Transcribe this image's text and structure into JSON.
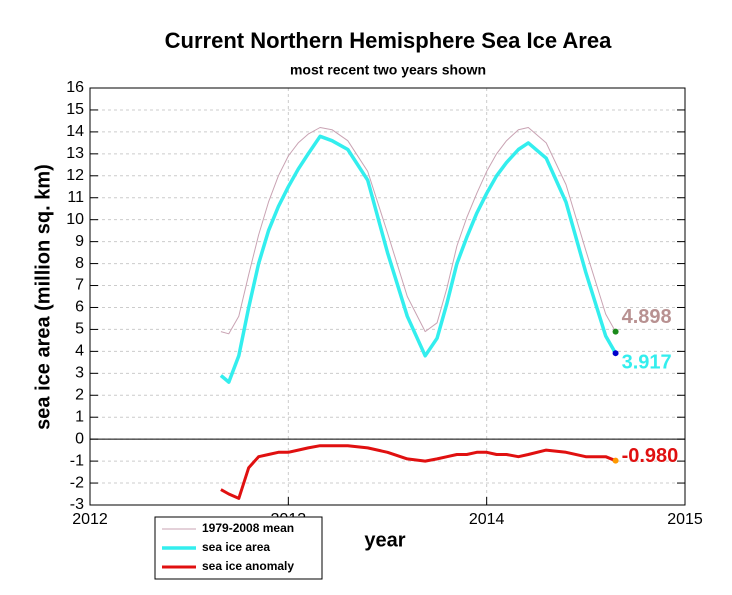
{
  "chart_data": {
    "type": "line",
    "title": "Current Northern Hemisphere Sea Ice Area",
    "subtitle": "most recent two years shown",
    "x_label": "year",
    "y_label": "sea ice area (million sq. km)",
    "x": [
      2012.66,
      2012.7,
      2012.75,
      2012.8,
      2012.85,
      2012.9,
      2012.95,
      2013.0,
      2013.05,
      2013.1,
      2013.16,
      2013.22,
      2013.3,
      2013.4,
      2013.5,
      2013.6,
      2013.69,
      2013.75,
      2013.8,
      2013.85,
      2013.9,
      2013.95,
      2014.0,
      2014.05,
      2014.1,
      2014.16,
      2014.21,
      2014.3,
      2014.4,
      2014.5,
      2014.6,
      2014.65
    ],
    "series": [
      {
        "name": "1979-2008 mean",
        "color": "#c9a3b3",
        "marker_color": "#1a8a1a",
        "label_color": "#b89191",
        "values": [
          4.9,
          4.8,
          5.6,
          7.5,
          9.3,
          10.8,
          12.0,
          12.9,
          13.5,
          13.9,
          14.2,
          14.1,
          13.6,
          12.2,
          9.4,
          6.5,
          4.9,
          5.3,
          6.9,
          8.8,
          10.1,
          11.2,
          12.2,
          13.0,
          13.6,
          14.1,
          14.2,
          13.5,
          11.6,
          8.6,
          5.7,
          4.898
        ],
        "value_labels": [
          null,
          null,
          null,
          null,
          null,
          null,
          null,
          null,
          null,
          null,
          null,
          null,
          null,
          null,
          null,
          null,
          null,
          null,
          null,
          null,
          null,
          null,
          null,
          null,
          null,
          null,
          null,
          null,
          null,
          null,
          null,
          "4.898"
        ]
      },
      {
        "name": "sea ice area",
        "color": "#33eeee",
        "marker_color": "#0000cc",
        "label_color": "#33eeee",
        "values": [
          2.9,
          2.6,
          3.8,
          6.0,
          8.0,
          9.5,
          10.6,
          11.5,
          12.3,
          13.0,
          13.8,
          13.6,
          13.2,
          11.8,
          8.5,
          5.6,
          3.8,
          4.6,
          6.2,
          8.0,
          9.2,
          10.3,
          11.2,
          12.0,
          12.6,
          13.2,
          13.5,
          12.8,
          10.8,
          7.6,
          4.7,
          3.917
        ],
        "value_labels": [
          null,
          null,
          null,
          null,
          null,
          null,
          null,
          null,
          null,
          null,
          null,
          null,
          null,
          null,
          null,
          null,
          null,
          null,
          null,
          null,
          null,
          null,
          null,
          null,
          null,
          null,
          null,
          null,
          null,
          null,
          null,
          "3.917"
        ]
      },
      {
        "name": "sea ice anomaly",
        "color": "#e01010",
        "marker_color": "#ff9900",
        "label_color": "#e01010",
        "values": [
          -2.3,
          -2.5,
          -2.7,
          -1.3,
          -0.8,
          -0.7,
          -0.6,
          -0.6,
          -0.5,
          -0.4,
          -0.3,
          -0.3,
          -0.3,
          -0.4,
          -0.6,
          -0.9,
          -1.0,
          -0.9,
          -0.8,
          -0.7,
          -0.7,
          -0.6,
          -0.6,
          -0.7,
          -0.7,
          -0.8,
          -0.7,
          -0.5,
          -0.6,
          -0.8,
          -0.8,
          -0.98
        ],
        "value_labels": [
          null,
          null,
          null,
          null,
          null,
          null,
          null,
          null,
          null,
          null,
          null,
          null,
          null,
          null,
          null,
          null,
          null,
          null,
          null,
          null,
          null,
          null,
          null,
          null,
          null,
          null,
          null,
          null,
          null,
          null,
          null,
          "-0.980"
        ]
      }
    ],
    "xlim": [
      2012,
      2015
    ],
    "xticks": [
      2012,
      2013,
      2014,
      2015
    ],
    "ylim": [
      -3,
      16
    ],
    "yticks": [
      -3,
      -2,
      -1,
      0,
      1,
      2,
      3,
      4,
      5,
      6,
      7,
      8,
      9,
      10,
      11,
      12,
      13,
      14,
      15,
      16
    ],
    "grid": true,
    "legend": "lower left"
  }
}
